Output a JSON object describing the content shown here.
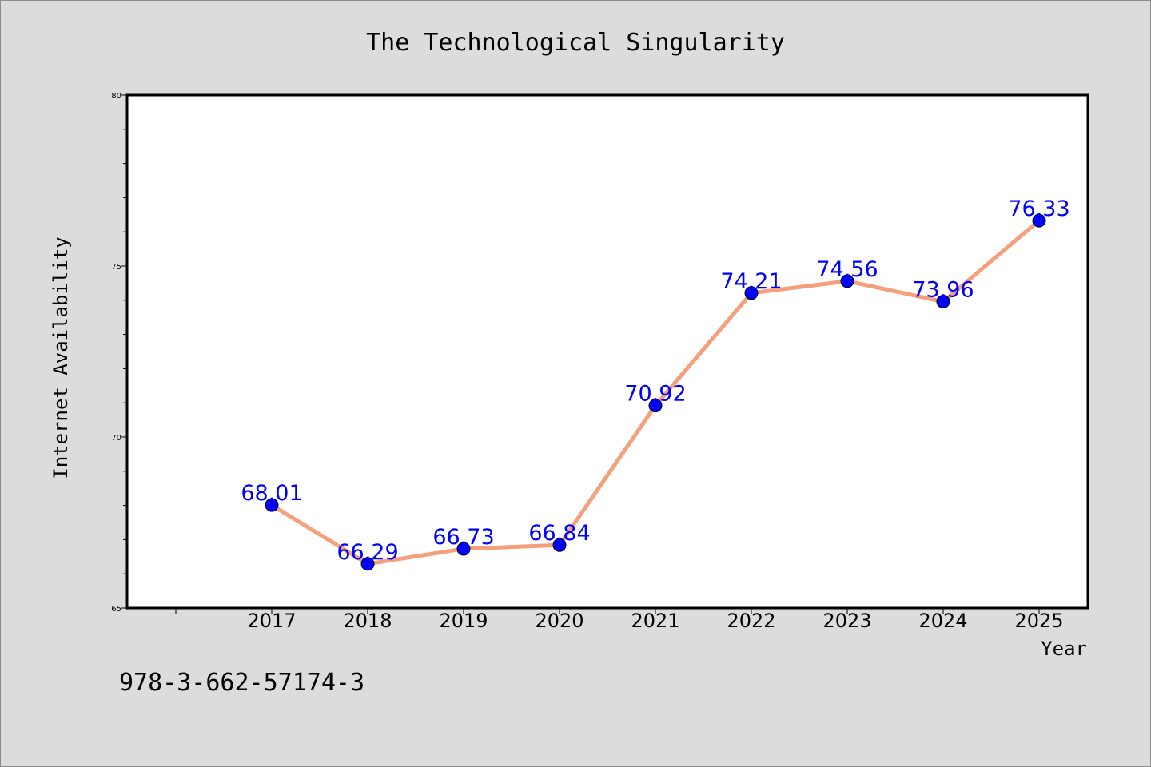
{
  "chart_data": {
    "type": "line",
    "title": "The Technological Singularity",
    "xlabel": "Year",
    "ylabel": "Internet Availability",
    "categories": [
      "2017",
      "2018",
      "2019",
      "2020",
      "2021",
      "2022",
      "2023",
      "2024",
      "2025"
    ],
    "series": [
      {
        "values": [
          68.01,
          66.29,
          66.73,
          66.84,
          70.92,
          74.21,
          74.56,
          73.96,
          76.33
        ],
        "labels": [
          "68.01",
          "66.29",
          "66.73",
          "66.84",
          "70.92",
          "74.21",
          "74.56",
          "73.96",
          "76.33"
        ],
        "line_color": "#f4a07c",
        "marker_color": "#0000ff"
      }
    ],
    "ylim": [
      65,
      80
    ],
    "y_ticks": [
      "65",
      "70",
      "75",
      "80"
    ],
    "grid": false,
    "legend": "none",
    "annotation": "978-3-662-57174-3"
  }
}
